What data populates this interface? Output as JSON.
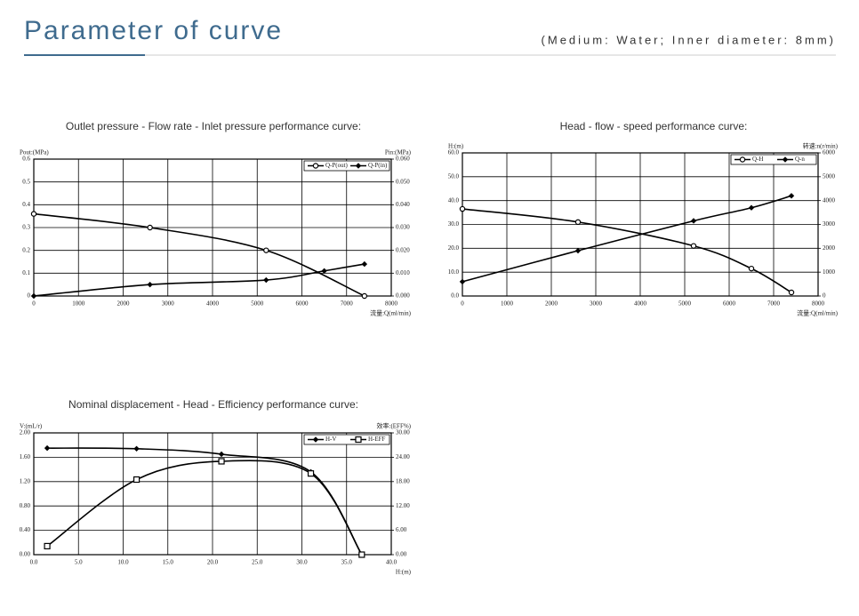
{
  "header": {
    "title": "Parameter of curve",
    "subtitle": "(Medium: Water; Inner diameter: 8mm)"
  },
  "chart_data": [
    {
      "type": "line",
      "title": "Outlet pressure - Flow rate - Inlet pressure performance curve:",
      "ylabel": "Pout:(MPa)",
      "y2label": "Pin:(MPa)",
      "xlabel": "流量:Q(ml/min)",
      "xlim": [
        0,
        8000
      ],
      "xticks": [
        0,
        1000,
        2000,
        3000,
        4000,
        5000,
        6000,
        7000,
        8000
      ],
      "ylim": [
        0,
        0.6
      ],
      "yticks": [
        0,
        0.1,
        0.2,
        0.3,
        0.4,
        0.5,
        0.6
      ],
      "y2lim": [
        0,
        0.06
      ],
      "y2ticks": [
        {
          "value": 0,
          "label": "0.000"
        },
        {
          "value": 0.01,
          "label": "0.010"
        },
        {
          "value": 0.02,
          "label": "0.020"
        },
        {
          "value": 0.03,
          "label": "0.030"
        },
        {
          "value": 0.04,
          "label": "0.040"
        },
        {
          "value": 0.05,
          "label": "0.050"
        },
        {
          "value": 0.06,
          "label": "0.060"
        }
      ],
      "grid": true,
      "legend": "upper right",
      "series": [
        {
          "name": "Q-P(out)",
          "color": "#000000",
          "marker": "circle",
          "x": [
            0,
            2600,
            5200,
            7400
          ],
          "values": [
            0.36,
            0.3,
            0.2,
            0
          ]
        },
        {
          "name": "Q-P(in)",
          "color": "#000000",
          "marker": "diamond",
          "axis": "y2",
          "x": [
            0,
            2600,
            5200,
            6500,
            7400
          ],
          "values": [
            0,
            0.005,
            0.007,
            0.011,
            0.014
          ]
        }
      ]
    },
    {
      "type": "line",
      "title": "Head - flow - speed performance curve:",
      "ylabel": "H:(m)",
      "y2label": "转速:n(r/min)",
      "xlabel": "流量:Q(ml/min)",
      "xlim": [
        0,
        8000
      ],
      "xticks": [
        0,
        1000,
        2000,
        3000,
        4000,
        5000,
        6000,
        7000,
        8000
      ],
      "ylim": [
        0,
        60
      ],
      "yticks": [
        {
          "value": 0,
          "label": "0.0"
        },
        {
          "value": 10,
          "label": "10.0"
        },
        {
          "value": 20,
          "label": "20.0"
        },
        {
          "value": 30,
          "label": "30.0"
        },
        {
          "value": 40,
          "label": "40.0"
        },
        {
          "value": 50,
          "label": "50.0"
        },
        {
          "value": 60,
          "label": "60.0"
        }
      ],
      "y2lim": [
        0,
        6000
      ],
      "y2ticks": [
        0,
        1000,
        2000,
        3000,
        4000,
        5000,
        6000
      ],
      "grid": true,
      "legend": "upper right",
      "series": [
        {
          "name": "Q-H",
          "color": "#000000",
          "marker": "circle",
          "x": [
            0,
            2600,
            5200,
            6500,
            7400
          ],
          "values": [
            36.5,
            31,
            21,
            11.5,
            1.5
          ]
        },
        {
          "name": "Q-n",
          "color": "#000000",
          "marker": "diamond",
          "axis": "y2",
          "x": [
            0,
            2600,
            5200,
            6500,
            7400
          ],
          "values": [
            600,
            1900,
            3150,
            3700,
            4200
          ]
        }
      ]
    },
    {
      "type": "line",
      "title": "Nominal displacement - Head - Efficiency performance curve:",
      "ylabel": "V:(mL/r)",
      "y2label": "效率:(EFF%)",
      "xlabel": "H:(m)",
      "xlim": [
        0,
        40
      ],
      "xticks": [
        {
          "value": 0,
          "label": "0.0"
        },
        {
          "value": 5,
          "label": "5.0"
        },
        {
          "value": 10,
          "label": "10.0"
        },
        {
          "value": 15,
          "label": "15.0"
        },
        {
          "value": 20,
          "label": "20.0"
        },
        {
          "value": 25,
          "label": "25.0"
        },
        {
          "value": 30,
          "label": "30.0"
        },
        {
          "value": 35,
          "label": "35.0"
        },
        {
          "value": 40,
          "label": "40.0"
        }
      ],
      "ylim": [
        0,
        2
      ],
      "yticks": [
        {
          "value": 0,
          "label": "0.00"
        },
        {
          "value": 0.4,
          "label": "0.40"
        },
        {
          "value": 0.8,
          "label": "0.80"
        },
        {
          "value": 1.2,
          "label": "1.20"
        },
        {
          "value": 1.6,
          "label": "1.60"
        },
        {
          "value": 2,
          "label": "2.00"
        }
      ],
      "y2lim": [
        0,
        30
      ],
      "y2ticks": [
        {
          "value": 0,
          "label": "0.00"
        },
        {
          "value": 6,
          "label": "6.00"
        },
        {
          "value": 12,
          "label": "12.00"
        },
        {
          "value": 18,
          "label": "18.00"
        },
        {
          "value": 24,
          "label": "24.00"
        },
        {
          "value": 30,
          "label": "30.00"
        }
      ],
      "grid": true,
      "legend": "upper right",
      "series": [
        {
          "name": "H-V",
          "color": "#000000",
          "marker": "diamond",
          "x": [
            1.5,
            11.5,
            21,
            31,
            36.7
          ],
          "values": [
            1.75,
            1.74,
            1.65,
            1.36,
            0
          ]
        },
        {
          "name": "H-EFF",
          "color": "#000000",
          "marker": "square",
          "axis": "y2",
          "x": [
            1.5,
            11.5,
            21,
            31,
            36.7
          ],
          "values": [
            2.1,
            18.5,
            23,
            20,
            0
          ]
        }
      ]
    }
  ]
}
